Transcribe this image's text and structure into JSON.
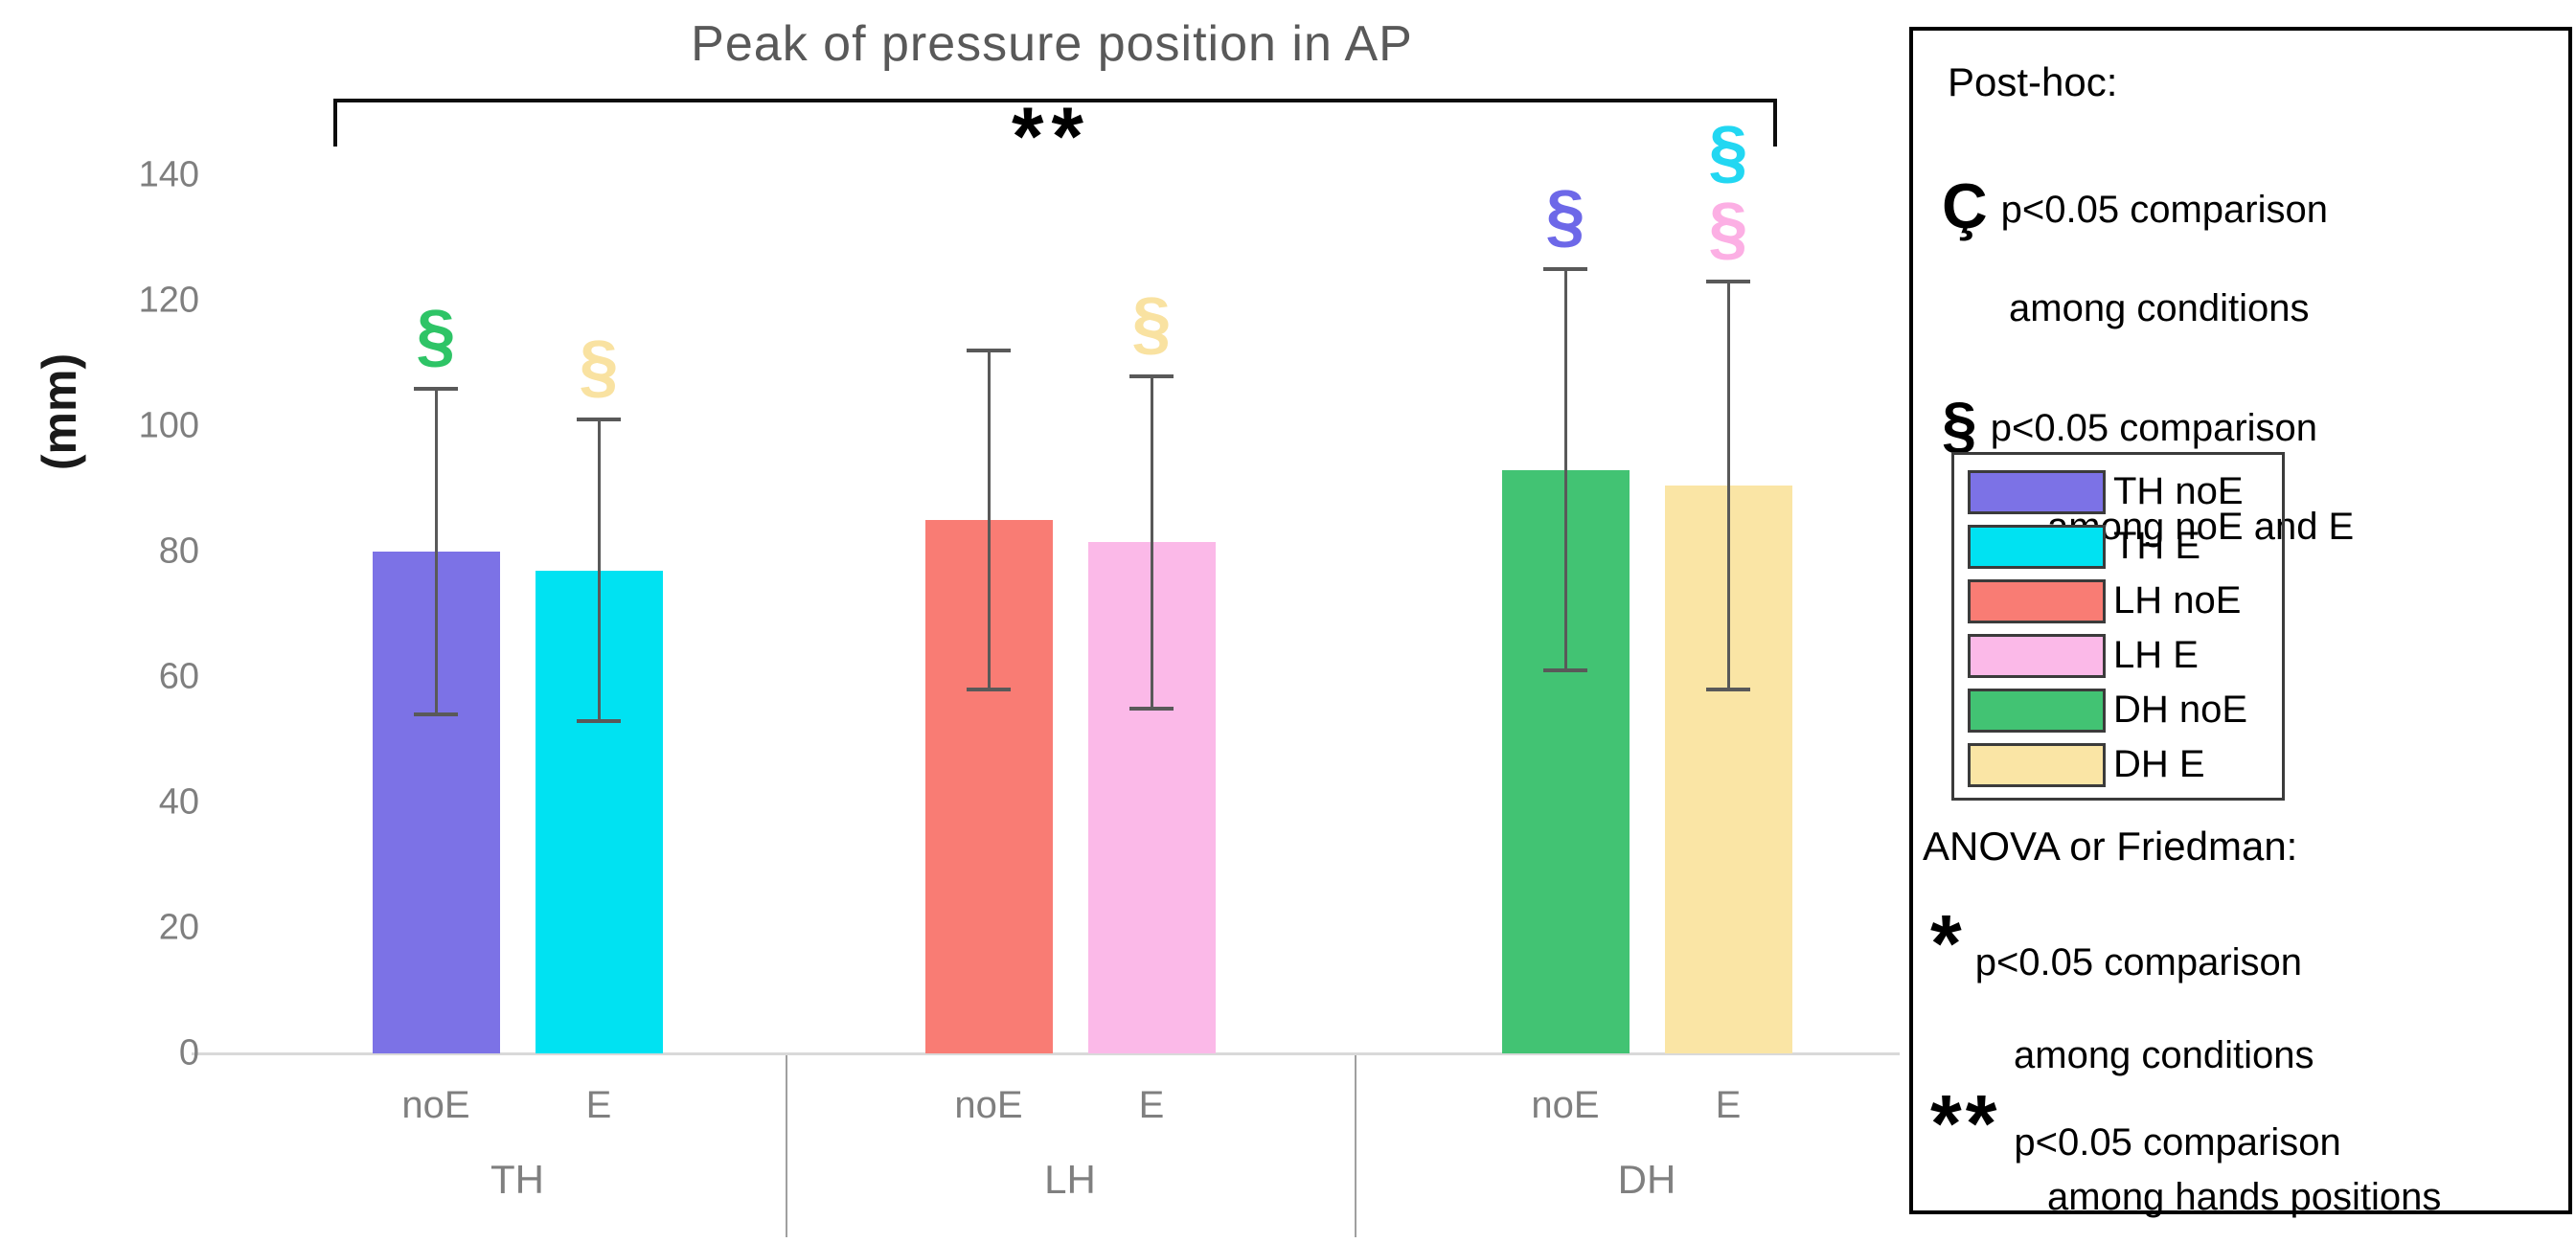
{
  "chart_data": {
    "type": "bar",
    "title": "Peak of pressure position in AP",
    "ylabel": "(mm)",
    "yticks": [
      0,
      20,
      40,
      60,
      80,
      100,
      120,
      140
    ],
    "ylim": [
      0,
      150
    ],
    "grid": false,
    "groups": [
      "TH",
      "LH",
      "DH"
    ],
    "condition_labels": [
      "noE",
      "E"
    ],
    "bars": [
      {
        "label": "TH noE",
        "group": "TH",
        "condition": "noE",
        "value": 80,
        "err_low": 54,
        "err_high": 106,
        "color": "#7C72E6",
        "markers": [
          {
            "glyph": "§",
            "color": "#2EC466"
          }
        ]
      },
      {
        "label": "TH E",
        "group": "TH",
        "condition": "E",
        "value": 77,
        "err_low": 53,
        "err_high": 101,
        "color": "#00E2F2",
        "markers": [
          {
            "glyph": "§",
            "color": "#F9E2A1"
          }
        ]
      },
      {
        "label": "LH noE",
        "group": "LH",
        "condition": "noE",
        "value": 85,
        "err_low": 58,
        "err_high": 112,
        "color": "#F97C74",
        "markers": []
      },
      {
        "label": "LH E",
        "group": "LH",
        "condition": "E",
        "value": 81.5,
        "err_low": 55,
        "err_high": 108,
        "color": "#FBB9E8",
        "markers": [
          {
            "glyph": "§",
            "color": "#F9E2A1"
          }
        ]
      },
      {
        "label": "DH noE",
        "group": "DH",
        "condition": "noE",
        "value": 93,
        "err_low": 61,
        "err_high": 125,
        "color": "#42C373",
        "markers": [
          {
            "glyph": "§",
            "color": "#6D68E8"
          }
        ]
      },
      {
        "label": "DH E",
        "group": "DH",
        "condition": "E",
        "value": 90.5,
        "err_low": 58,
        "err_high": 123,
        "color": "#FAE5A5",
        "markers": [
          {
            "glyph": "§",
            "color": "#FCAFE4"
          },
          {
            "glyph": "§",
            "color": "#22D7F2"
          }
        ]
      }
    ],
    "significance_bracket": {
      "symbol": "**"
    }
  },
  "legend_panel": {
    "title": "Post-hoc:",
    "entries": [
      {
        "symbol": "Ç",
        "line1": "p<0.05 comparison",
        "line2": "among conditions"
      },
      {
        "symbol": "§",
        "line1": "p<0.05 comparison",
        "line2": "among noE and E"
      }
    ],
    "key": {
      "items": [
        {
          "label": "TH noE",
          "color": "#7C72E6"
        },
        {
          "label": "TH E",
          "color": "#00E2F2"
        },
        {
          "label": "LH noE",
          "color": "#F97C74"
        },
        {
          "label": "LH E",
          "color": "#FBB9E8"
        },
        {
          "label": "DH noE",
          "color": "#42C373"
        },
        {
          "label": "DH E",
          "color": "#FAE5A5"
        }
      ]
    },
    "anova_title": "ANOVA or Friedman:",
    "anova_entries": [
      {
        "symbol": "*",
        "line1": "p<0.05 comparison",
        "line2": "among conditions"
      },
      {
        "symbol": "**",
        "line1": "p<0.05 comparison",
        "line2": "among hands positions"
      }
    ]
  }
}
